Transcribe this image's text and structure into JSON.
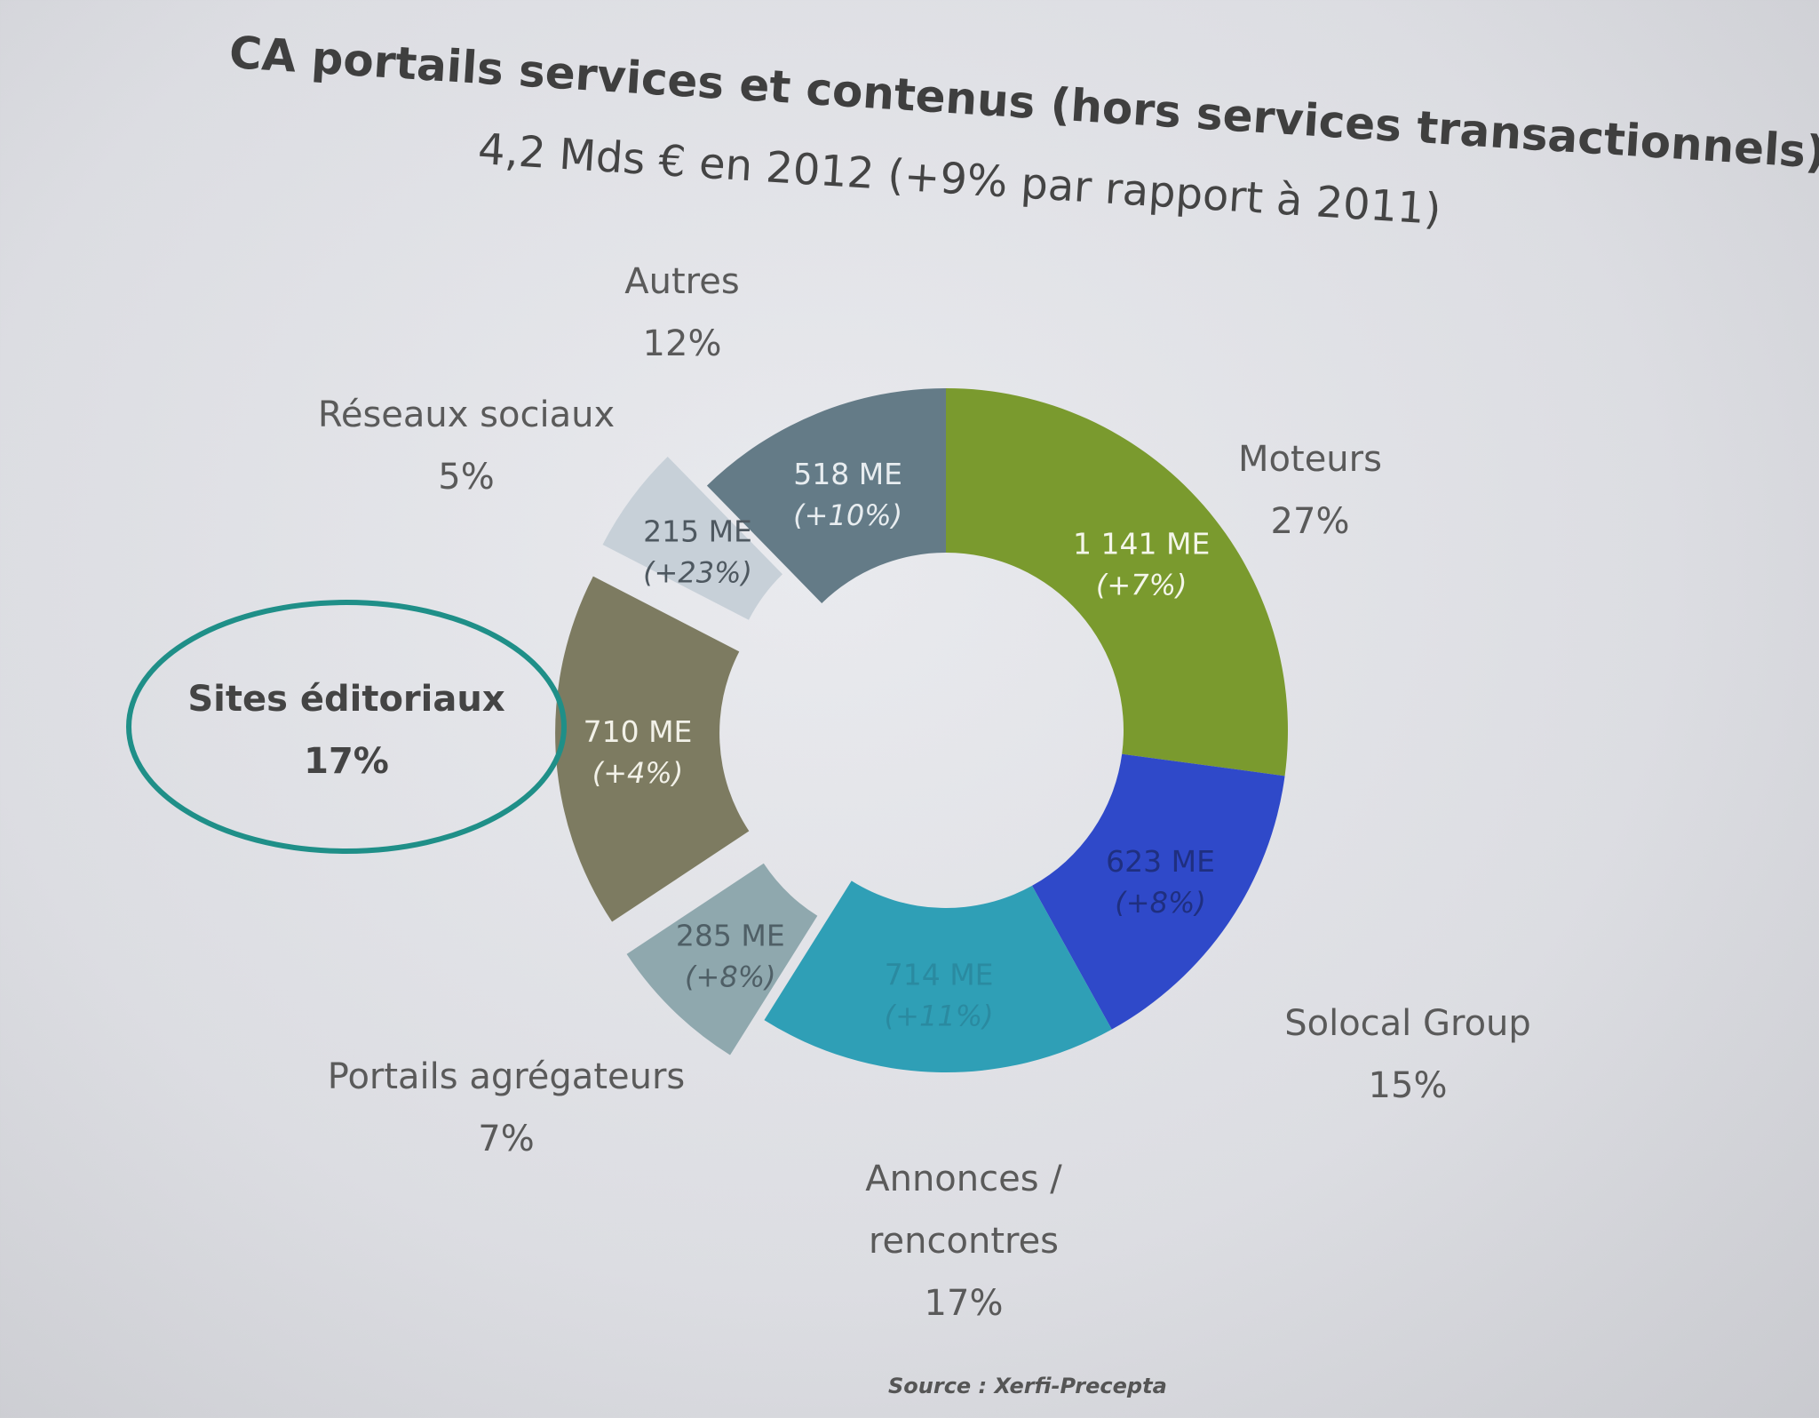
{
  "chart_data": {
    "type": "pie",
    "title": "CA portails services et contenus (hors services transactionnels)",
    "subtitle": "4,2 Mds € en 2012 (+9% par rapport à 2011)",
    "source": "Source : Xerfi-Precepta",
    "slices": [
      {
        "name": "Moteurs",
        "percent_label": "27%",
        "value": 1141,
        "value_label": "1 141 ME",
        "change_label": "(+7%)",
        "color": "#7a9a2e",
        "exploded": false,
        "label_color": "#f4f6ea"
      },
      {
        "name": "Solocal Group",
        "percent_label": "15%",
        "value": 623,
        "value_label": "623 ME",
        "change_label": "(+8%)",
        "color": "#2f49c9",
        "exploded": false,
        "label_color": "#1f2f80"
      },
      {
        "name": "Annonces / rencontres",
        "percent_label": "17%",
        "value": 714,
        "value_label": "714 ME",
        "change_label": "(+11%)",
        "color": "#2f9fb6",
        "exploded": false,
        "label_color": "#2a8aa0"
      },
      {
        "name": "Portails agrégateurs",
        "percent_label": "7%",
        "value": 285,
        "value_label": "285 ME",
        "change_label": "(+8%)",
        "color": "#8fa8ae",
        "exploded": true,
        "label_color": "#4f5f66"
      },
      {
        "name": "Sites éditoriaux",
        "percent_label": "17%",
        "value": 710,
        "value_label": "710 ME",
        "change_label": "(+4%)",
        "color": "#7d7b61",
        "exploded": true,
        "highlighted": true,
        "label_color": "#f2f1e8"
      },
      {
        "name": "Réseaux sociaux",
        "percent_label": "5%",
        "value": 215,
        "value_label": "215 ME",
        "change_label": "(+23%)",
        "color": "#c7d0d8",
        "exploded": true,
        "label_color": "#4e5860"
      },
      {
        "name": "Autres",
        "percent_label": "12%",
        "value": 518,
        "value_label": "518 ME",
        "change_label": "(+10%)",
        "color": "#647b87",
        "exploded": false,
        "label_color": "#e8edf0"
      }
    ],
    "highlight_color": "#1f8f88"
  }
}
